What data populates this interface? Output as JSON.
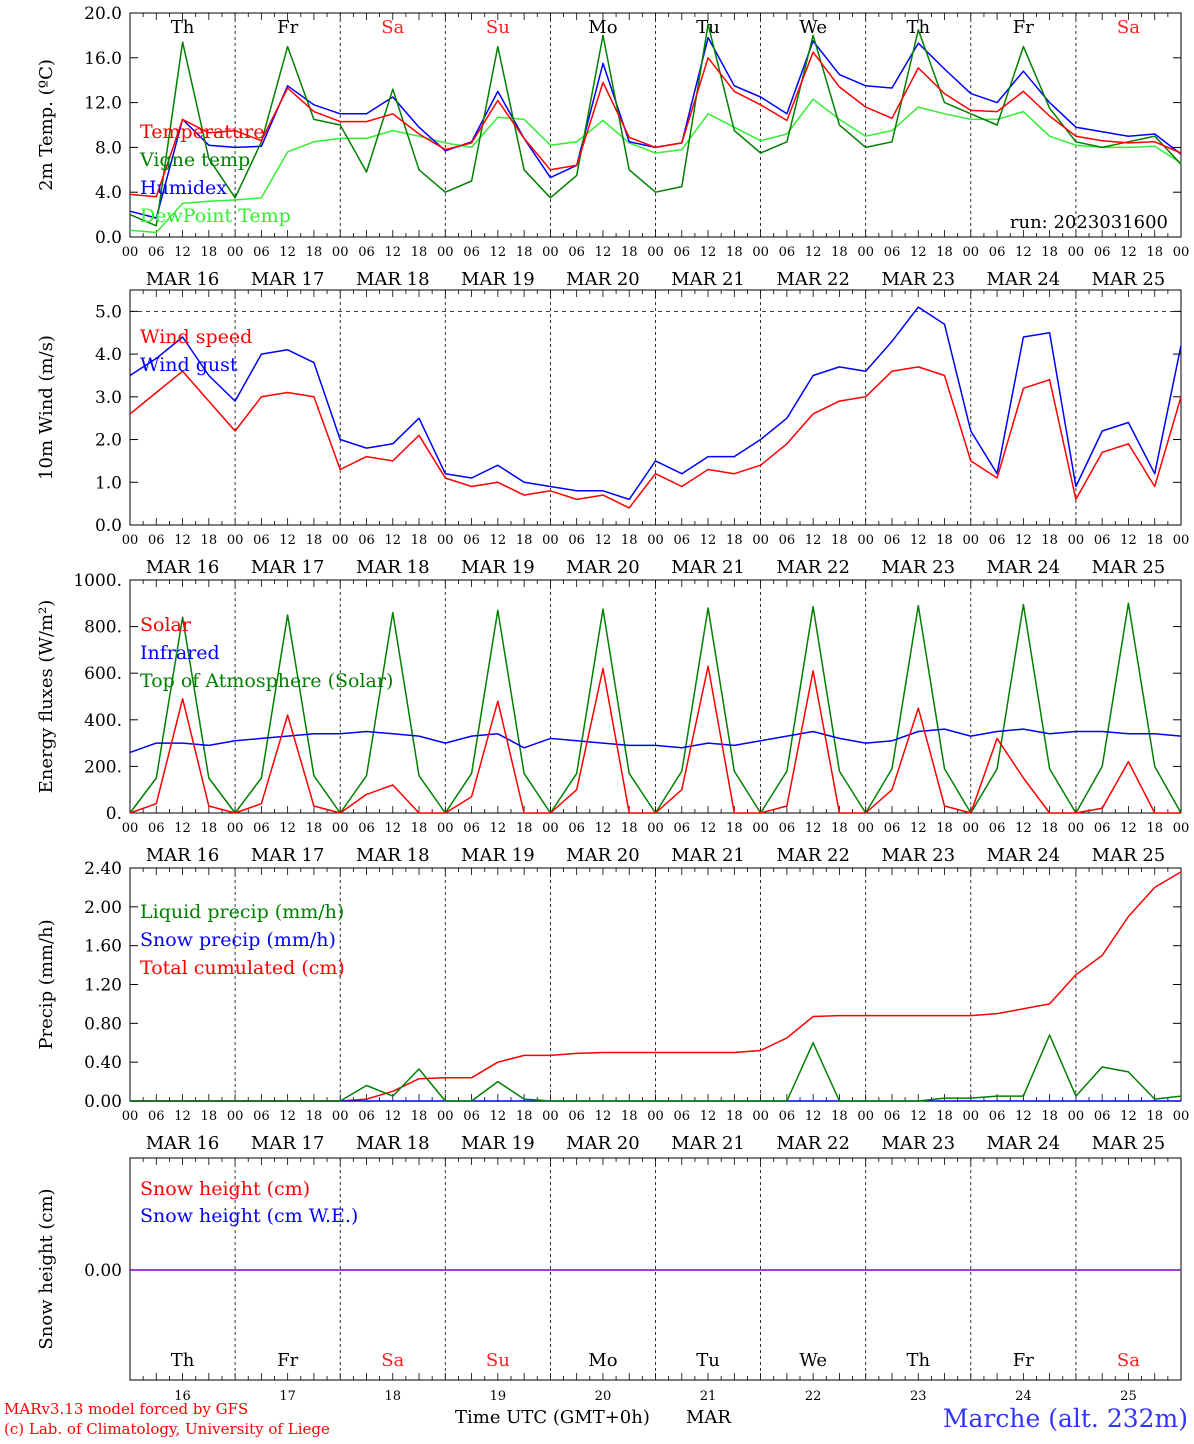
{
  "footer": {
    "credit_line1": "MARv3.13 model forced by GFS",
    "credit_line2": "(c) Lab. of Climatology, University of Liege",
    "xaxis_title": "Time UTC (GMT+0h)",
    "month": "MAR",
    "station": "Marche (alt. 232m)"
  },
  "days": [
    {
      "dow": "Th",
      "date": "MAR 16",
      "num": "16",
      "weekend": false
    },
    {
      "dow": "Fr",
      "date": "MAR 17",
      "num": "17",
      "weekend": false
    },
    {
      "dow": "Sa",
      "date": "MAR 18",
      "num": "18",
      "weekend": true
    },
    {
      "dow": "Su",
      "date": "MAR 19",
      "num": "19",
      "weekend": true
    },
    {
      "dow": "Mo",
      "date": "MAR 20",
      "num": "20",
      "weekend": false
    },
    {
      "dow": "Tu",
      "date": "MAR 21",
      "num": "21",
      "weekend": false
    },
    {
      "dow": "We",
      "date": "MAR 22",
      "num": "22",
      "weekend": false
    },
    {
      "dow": "Th",
      "date": "MAR 23",
      "num": "23",
      "weekend": false
    },
    {
      "dow": "Fr",
      "date": "MAR 24",
      "num": "24",
      "weekend": false
    },
    {
      "dow": "Sa",
      "date": "MAR 25",
      "num": "25",
      "weekend": true
    }
  ],
  "hour_ticks": [
    "00",
    "06",
    "12",
    "18"
  ],
  "colors": {
    "weekday": "#000000",
    "weekend": "#ff2020",
    "red": "#ff0000",
    "blue": "#0000ff",
    "dkgreen": "#008000",
    "ltgreen": "#33ee33",
    "purple": "#8000c0"
  },
  "chart_data": [
    {
      "type": "line",
      "ylabel": "2m Temp. (ºC)",
      "ylim": [
        0,
        20
      ],
      "yticks": [
        "0.0",
        "4.0",
        "8.0",
        "12.0",
        "16.0",
        "20.0"
      ],
      "annotation": "run: 2023031600",
      "x_hours": [
        0,
        6,
        12,
        18,
        24,
        30,
        36,
        42,
        48,
        54,
        60,
        66,
        72,
        78,
        84,
        90,
        96,
        102,
        108,
        114,
        120,
        126,
        132,
        138,
        144,
        150,
        156,
        162,
        168,
        174,
        180,
        186,
        192,
        198,
        204,
        210,
        216,
        222,
        228,
        234,
        240
      ],
      "series": [
        {
          "name": "Temperature",
          "color": "#ff0000",
          "values": [
            3.8,
            3.6,
            10.5,
            9.3,
            9.5,
            8.6,
            13.3,
            11.2,
            10.3,
            10.3,
            11.0,
            9.2,
            7.8,
            8.4,
            12.2,
            8.8,
            6.0,
            6.4,
            13.8,
            8.9,
            8.0,
            8.4,
            16.0,
            13.0,
            11.8,
            10.4,
            16.5,
            13.4,
            11.6,
            10.6,
            15.1,
            12.8,
            11.3,
            11.2,
            13.0,
            10.8,
            9.0,
            8.6,
            8.4,
            8.5,
            7.5
          ]
        },
        {
          "name": "Vigne temp",
          "color": "#008000",
          "values": [
            2.0,
            1.0,
            17.4,
            7.0,
            3.5,
            8.5,
            17.0,
            10.5,
            10.0,
            5.8,
            13.2,
            6.0,
            4.0,
            5.0,
            17.0,
            6.0,
            3.5,
            5.5,
            18.0,
            6.0,
            4.0,
            4.5,
            19.0,
            9.5,
            7.5,
            8.5,
            18.0,
            10.0,
            8.0,
            8.5,
            18.5,
            12.0,
            11.0,
            10.0,
            17.0,
            11.5,
            8.5,
            8.0,
            8.5,
            9.0,
            6.5
          ]
        },
        {
          "name": "Humidex",
          "color": "#0000ff",
          "values": [
            2.3,
            1.7,
            10.5,
            8.2,
            8.0,
            8.1,
            13.5,
            11.8,
            11.0,
            11.0,
            12.5,
            9.8,
            7.7,
            8.5,
            13.0,
            8.8,
            5.3,
            6.4,
            15.5,
            8.5,
            8.0,
            8.4,
            17.8,
            13.5,
            12.5,
            11.0,
            17.5,
            14.5,
            13.5,
            13.3,
            17.3,
            15.0,
            12.8,
            12.0,
            14.8,
            12.0,
            9.8,
            9.4,
            9.0,
            9.2,
            7.4
          ]
        },
        {
          "name": "DewPoint Temp",
          "color": "#33ee33",
          "values": [
            0.6,
            0.4,
            3.0,
            3.2,
            3.3,
            3.5,
            7.6,
            8.5,
            8.8,
            8.8,
            9.5,
            9.0,
            8.4,
            8.0,
            10.7,
            10.5,
            8.2,
            8.5,
            10.4,
            8.4,
            7.5,
            7.8,
            11.0,
            9.8,
            8.6,
            9.2,
            12.3,
            10.5,
            9.0,
            9.5,
            11.6,
            11.0,
            10.5,
            10.5,
            11.2,
            9.0,
            8.2,
            8.0,
            8.0,
            8.1,
            6.6
          ]
        }
      ]
    },
    {
      "type": "line",
      "ylabel": "10m Wind (m/s)",
      "ylim": [
        0,
        5.5
      ],
      "yticks": [
        "0.0",
        "1.0",
        "2.0",
        "3.0",
        "4.0",
        "5.0"
      ],
      "x_hours": [
        0,
        6,
        12,
        18,
        24,
        30,
        36,
        42,
        48,
        54,
        60,
        66,
        72,
        78,
        84,
        90,
        96,
        102,
        108,
        114,
        120,
        126,
        132,
        138,
        144,
        150,
        156,
        162,
        168,
        174,
        180,
        186,
        192,
        198,
        204,
        210,
        216,
        222,
        228,
        234,
        240
      ],
      "series": [
        {
          "name": "Wind speed",
          "color": "#ff0000",
          "values": [
            2.6,
            3.1,
            3.6,
            2.9,
            2.2,
            3.0,
            3.1,
            3.0,
            1.3,
            1.6,
            1.5,
            2.1,
            1.1,
            0.9,
            1.0,
            0.7,
            0.8,
            0.6,
            0.7,
            0.4,
            1.2,
            0.9,
            1.3,
            1.2,
            1.4,
            1.9,
            2.6,
            2.9,
            3.0,
            3.6,
            3.7,
            3.5,
            1.5,
            1.1,
            3.2,
            3.4,
            0.6,
            1.7,
            1.9,
            0.9,
            3.0
          ]
        },
        {
          "name": "Wind gust",
          "color": "#0000ff",
          "values": [
            3.5,
            3.9,
            4.4,
            3.5,
            2.9,
            4.0,
            4.1,
            3.8,
            2.0,
            1.8,
            1.9,
            2.5,
            1.2,
            1.1,
            1.4,
            1.0,
            0.9,
            0.8,
            0.8,
            0.6,
            1.5,
            1.2,
            1.6,
            1.6,
            2.0,
            2.5,
            3.5,
            3.7,
            3.6,
            4.3,
            5.1,
            4.7,
            2.2,
            1.2,
            4.4,
            4.5,
            0.9,
            2.2,
            2.4,
            1.2,
            4.2
          ]
        }
      ]
    },
    {
      "type": "line",
      "ylabel": "Energy fluxes (W/m²)",
      "ylim": [
        0,
        1000
      ],
      "yticks": [
        "0.",
        "200.",
        "400.",
        "600.",
        "800.",
        "1000."
      ],
      "x_hours": [
        0,
        6,
        12,
        18,
        24,
        30,
        36,
        42,
        48,
        54,
        60,
        66,
        72,
        78,
        84,
        90,
        96,
        102,
        108,
        114,
        120,
        126,
        132,
        138,
        144,
        150,
        156,
        162,
        168,
        174,
        180,
        186,
        192,
        198,
        204,
        210,
        216,
        222,
        228,
        234,
        240
      ],
      "series": [
        {
          "name": "Solar",
          "color": "#ff0000",
          "values": [
            0,
            40,
            490,
            30,
            0,
            40,
            420,
            30,
            0,
            80,
            120,
            0,
            0,
            70,
            480,
            0,
            0,
            100,
            620,
            0,
            0,
            100,
            630,
            0,
            0,
            30,
            610,
            0,
            0,
            100,
            450,
            30,
            0,
            320,
            150,
            0,
            0,
            20,
            220,
            0,
            0
          ]
        },
        {
          "name": "Infrared",
          "color": "#0000ff",
          "values": [
            260,
            300,
            300,
            290,
            310,
            320,
            330,
            340,
            340,
            350,
            340,
            330,
            300,
            330,
            340,
            280,
            320,
            310,
            300,
            290,
            290,
            280,
            300,
            290,
            310,
            330,
            350,
            320,
            300,
            310,
            350,
            360,
            330,
            350,
            360,
            340,
            350,
            350,
            340,
            340,
            330
          ]
        },
        {
          "name": "Top of Atmosphere (Solar)",
          "color": "#008000",
          "values": [
            0,
            150,
            840,
            150,
            0,
            150,
            850,
            160,
            0,
            160,
            860,
            160,
            0,
            170,
            870,
            170,
            0,
            170,
            875,
            170,
            0,
            180,
            880,
            180,
            0,
            180,
            885,
            180,
            0,
            190,
            890,
            190,
            0,
            190,
            895,
            190,
            0,
            200,
            900,
            200,
            0
          ]
        }
      ]
    },
    {
      "type": "line",
      "ylabel": "Precip (mm/h)",
      "ylim": [
        0,
        2.4
      ],
      "yticks": [
        "0.00",
        "0.40",
        "0.80",
        "1.20",
        "1.60",
        "2.00",
        "2.40"
      ],
      "x_hours": [
        0,
        6,
        12,
        18,
        24,
        30,
        36,
        42,
        48,
        54,
        60,
        66,
        72,
        78,
        84,
        90,
        96,
        102,
        108,
        114,
        120,
        126,
        132,
        138,
        144,
        150,
        156,
        162,
        168,
        174,
        180,
        186,
        192,
        198,
        204,
        210,
        216,
        222,
        228,
        234,
        240
      ],
      "series": [
        {
          "name": "Liquid precip (mm/h)",
          "color": "#008000",
          "values": [
            0,
            0,
            0,
            0,
            0,
            0,
            0,
            0,
            0,
            0.16,
            0.05,
            0.33,
            0,
            0,
            0.2,
            0.02,
            0,
            0,
            0,
            0,
            0,
            0,
            0,
            0,
            0,
            0,
            0.6,
            0,
            0,
            0,
            0,
            0.03,
            0.03,
            0.05,
            0.05,
            0.68,
            0.05,
            0.35,
            0.3,
            0.02,
            0.05
          ]
        },
        {
          "name": "Snow precip (mm/h)",
          "color": "#0000ff",
          "values": [
            0,
            0,
            0,
            0,
            0,
            0,
            0,
            0,
            0,
            0,
            0,
            0,
            0,
            0,
            0,
            0,
            0,
            0,
            0,
            0,
            0,
            0,
            0,
            0,
            0,
            0,
            0,
            0,
            0,
            0,
            0,
            0,
            0,
            0,
            0,
            0,
            0,
            0,
            0,
            0,
            0
          ]
        },
        {
          "name": "Total cumulated (cm)",
          "color": "#ff0000",
          "values": [
            0,
            0,
            0,
            0,
            0,
            0,
            0,
            0,
            0,
            0.02,
            0.1,
            0.23,
            0.24,
            0.24,
            0.4,
            0.47,
            0.47,
            0.49,
            0.5,
            0.5,
            0.5,
            0.5,
            0.5,
            0.5,
            0.52,
            0.65,
            0.87,
            0.88,
            0.88,
            0.88,
            0.88,
            0.88,
            0.88,
            0.9,
            0.95,
            1.0,
            1.3,
            1.5,
            1.9,
            2.2,
            2.36
          ]
        }
      ]
    },
    {
      "type": "line",
      "ylabel": "Snow height (cm)",
      "yticks": [
        "0.00"
      ],
      "series": [
        {
          "name": "Snow height (cm)",
          "color": "#ff0000"
        },
        {
          "name": "Snow height (cm W.E.)",
          "color": "#0000ff"
        }
      ]
    }
  ]
}
